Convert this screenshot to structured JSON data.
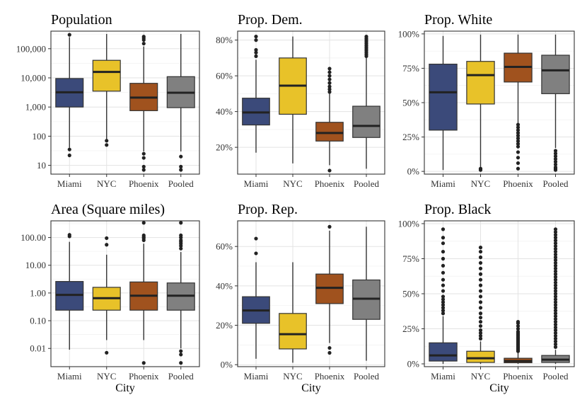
{
  "chart_data": [
    {
      "type": "box",
      "title": "Population",
      "scale": "log",
      "categories": [
        "Miami",
        "NYC",
        "Phoenix",
        "Pooled"
      ],
      "yticks": [
        10,
        100,
        1000,
        10000,
        100000
      ],
      "ytick_labels": [
        "10",
        "100",
        "1,000",
        "10,000",
        "100,000"
      ],
      "ylim": [
        5,
        400000
      ],
      "xlabel": "",
      "boxes": [
        {
          "min": 40,
          "q1": 1000,
          "median": 3200,
          "q3": 9500,
          "max": 250000,
          "outliers": [
            22,
            35,
            300000
          ]
        },
        {
          "min": 80,
          "q1": 3500,
          "median": 16000,
          "q3": 40000,
          "max": 320000,
          "outliers": [
            50,
            70
          ]
        },
        {
          "min": 30,
          "q1": 750,
          "median": 2100,
          "q3": 6500,
          "max": 120000,
          "outliers": [
            7,
            9,
            18,
            25,
            150000,
            200000,
            230000,
            260000
          ]
        },
        {
          "min": 30,
          "q1": 950,
          "median": 3100,
          "q3": 11000,
          "max": 320000,
          "outliers": [
            7,
            9,
            20
          ]
        }
      ],
      "fill": [
        "#3b4a7a",
        "#e8c229",
        "#a0521e",
        "#808080"
      ]
    },
    {
      "type": "box",
      "title": "Prop. Dem.",
      "scale": "linear",
      "categories": [
        "Miami",
        "NYC",
        "Phoenix",
        "Pooled"
      ],
      "yticks": [
        0.2,
        0.4,
        0.6,
        0.8
      ],
      "ytick_labels": [
        "20%",
        "40%",
        "60%",
        "80%"
      ],
      "ylim": [
        0.05,
        0.85
      ],
      "xlabel": "",
      "boxes": [
        {
          "min": 0.17,
          "q1": 0.325,
          "median": 0.395,
          "q3": 0.475,
          "max": 0.69,
          "outliers": [
            0.71,
            0.73,
            0.745,
            0.8,
            0.82
          ]
        },
        {
          "min": 0.11,
          "q1": 0.385,
          "median": 0.545,
          "q3": 0.7,
          "max": 0.82,
          "outliers": []
        },
        {
          "min": 0.1,
          "q1": 0.235,
          "median": 0.28,
          "q3": 0.34,
          "max": 0.5,
          "outliers": [
            0.07,
            0.51,
            0.525,
            0.54,
            0.56,
            0.58,
            0.6,
            0.62,
            0.64
          ]
        },
        {
          "min": 0.08,
          "q1": 0.255,
          "median": 0.32,
          "q3": 0.43,
          "max": 0.7,
          "outliers": [
            0.71,
            0.72,
            0.73,
            0.74,
            0.75,
            0.76,
            0.77,
            0.78,
            0.79,
            0.8,
            0.81,
            0.82
          ]
        }
      ],
      "fill": [
        "#3b4a7a",
        "#e8c229",
        "#a0521e",
        "#808080"
      ]
    },
    {
      "type": "box",
      "title": "Prop. White",
      "scale": "linear",
      "categories": [
        "Miami",
        "NYC",
        "Phoenix",
        "Pooled"
      ],
      "yticks": [
        0,
        0.25,
        0.5,
        0.75,
        1.0
      ],
      "ytick_labels": [
        "0%",
        "25%",
        "50%",
        "75%",
        "100%"
      ],
      "ylim": [
        -0.02,
        1.02
      ],
      "xlabel": "",
      "boxes": [
        {
          "min": 0.01,
          "q1": 0.3,
          "median": 0.575,
          "q3": 0.78,
          "max": 0.985,
          "outliers": []
        },
        {
          "min": 0.03,
          "q1": 0.49,
          "median": 0.7,
          "q3": 0.8,
          "max": 0.995,
          "outliers": [
            0.01,
            0.02
          ]
        },
        {
          "min": 0.35,
          "q1": 0.65,
          "median": 0.76,
          "q3": 0.86,
          "max": 0.995,
          "outliers": [
            0.02,
            0.06,
            0.1,
            0.14,
            0.18,
            0.2,
            0.22,
            0.24,
            0.26,
            0.28,
            0.3,
            0.32,
            0.34
          ]
        },
        {
          "min": 0.17,
          "q1": 0.565,
          "median": 0.735,
          "q3": 0.845,
          "max": 0.995,
          "outliers": [
            0.01,
            0.02,
            0.03,
            0.05,
            0.07,
            0.09,
            0.11,
            0.13,
            0.15
          ]
        }
      ],
      "fill": [
        "#3b4a7a",
        "#e8c229",
        "#a0521e",
        "#808080"
      ]
    },
    {
      "type": "box",
      "title": "Area (Square miles)",
      "scale": "log",
      "categories": [
        "Miami",
        "NYC",
        "Phoenix",
        "Pooled"
      ],
      "yticks": [
        0.01,
        0.1,
        1,
        10,
        100
      ],
      "ytick_labels": [
        "0.01",
        "0.10",
        "1.00",
        "10.00",
        "100.00"
      ],
      "ylim": [
        0.0022,
        400
      ],
      "xlabel": "City",
      "boxes": [
        {
          "min": 0.009,
          "q1": 0.24,
          "median": 0.85,
          "q3": 2.6,
          "max": 70,
          "outliers": [
            110,
            125
          ]
        },
        {
          "min": 0.02,
          "q1": 0.24,
          "median": 0.65,
          "q3": 1.6,
          "max": 24,
          "outliers": [
            0.007,
            55,
            95
          ]
        },
        {
          "min": 0.02,
          "q1": 0.24,
          "median": 0.8,
          "q3": 2.5,
          "max": 60,
          "outliers": [
            0.003,
            80,
            95,
            105,
            120,
            340
          ]
        },
        {
          "min": 0.01,
          "q1": 0.24,
          "median": 0.8,
          "q3": 2.3,
          "max": 30,
          "outliers": [
            0.003,
            0.006,
            0.008,
            40,
            50,
            60,
            70,
            80,
            100,
            120,
            340
          ]
        }
      ],
      "fill": [
        "#3b4a7a",
        "#e8c229",
        "#a0521e",
        "#808080"
      ]
    },
    {
      "type": "box",
      "title": "Prop. Rep.",
      "scale": "linear",
      "categories": [
        "Miami",
        "NYC",
        "Phoenix",
        "Pooled"
      ],
      "yticks": [
        0,
        0.2,
        0.4,
        0.6
      ],
      "ytick_labels": [
        "0%",
        "20%",
        "40%",
        "60%"
      ],
      "ylim": [
        -0.01,
        0.73
      ],
      "xlabel": "City",
      "boxes": [
        {
          "min": 0.03,
          "q1": 0.21,
          "median": 0.275,
          "q3": 0.345,
          "max": 0.52,
          "outliers": [
            0.565,
            0.64
          ]
        },
        {
          "min": 0.01,
          "q1": 0.08,
          "median": 0.155,
          "q3": 0.26,
          "max": 0.52,
          "outliers": []
        },
        {
          "min": 0.11,
          "q1": 0.31,
          "median": 0.39,
          "q3": 0.46,
          "max": 0.68,
          "outliers": [
            0.06,
            0.085,
            0.7
          ]
        },
        {
          "min": 0.02,
          "q1": 0.23,
          "median": 0.335,
          "q3": 0.43,
          "max": 0.7,
          "outliers": []
        }
      ],
      "fill": [
        "#3b4a7a",
        "#e8c229",
        "#a0521e",
        "#808080"
      ]
    },
    {
      "type": "box",
      "title": "Prop. Black",
      "scale": "linear",
      "categories": [
        "Miami",
        "NYC",
        "Phoenix",
        "Pooled"
      ],
      "yticks": [
        0,
        0.25,
        0.5,
        0.75,
        1.0
      ],
      "ytick_labels": [
        "0%",
        "25%",
        "50%",
        "75%",
        "100%"
      ],
      "ylim": [
        -0.02,
        1.02
      ],
      "xlabel": "City",
      "boxes": [
        {
          "min": 0.0,
          "q1": 0.02,
          "median": 0.06,
          "q3": 0.15,
          "max": 0.34,
          "outliers": [
            0.36,
            0.38,
            0.4,
            0.42,
            0.44,
            0.46,
            0.48,
            0.52,
            0.56,
            0.6,
            0.65,
            0.7,
            0.75,
            0.8,
            0.86,
            0.9,
            0.96
          ]
        },
        {
          "min": 0.0,
          "q1": 0.01,
          "median": 0.04,
          "q3": 0.09,
          "max": 0.16,
          "outliers": [
            0.18,
            0.2,
            0.22,
            0.24,
            0.27,
            0.3,
            0.33,
            0.36,
            0.4,
            0.44,
            0.48,
            0.52,
            0.56,
            0.6,
            0.64,
            0.68,
            0.72,
            0.76,
            0.8,
            0.83
          ]
        },
        {
          "min": 0.0,
          "q1": 0.008,
          "median": 0.02,
          "q3": 0.04,
          "max": 0.08,
          "outliers": [
            0.09,
            0.1,
            0.11,
            0.12,
            0.13,
            0.14,
            0.15,
            0.16,
            0.17,
            0.18,
            0.19,
            0.2,
            0.21,
            0.22,
            0.23,
            0.25,
            0.27,
            0.29,
            0.3
          ]
        },
        {
          "min": 0.0,
          "q1": 0.01,
          "median": 0.03,
          "q3": 0.06,
          "max": 0.1,
          "outliers": [
            0.12,
            0.14,
            0.16,
            0.18,
            0.2,
            0.22,
            0.24,
            0.26,
            0.28,
            0.3,
            0.32,
            0.34,
            0.36,
            0.38,
            0.4,
            0.42,
            0.44,
            0.46,
            0.48,
            0.5,
            0.52,
            0.54,
            0.56,
            0.58,
            0.6,
            0.62,
            0.64,
            0.66,
            0.68,
            0.7,
            0.72,
            0.74,
            0.76,
            0.78,
            0.8,
            0.82,
            0.84,
            0.86,
            0.88,
            0.9,
            0.92,
            0.94,
            0.96
          ]
        }
      ],
      "fill": [
        "#3b4a7a",
        "#e8c229",
        "#a0521e",
        "#808080"
      ]
    }
  ]
}
